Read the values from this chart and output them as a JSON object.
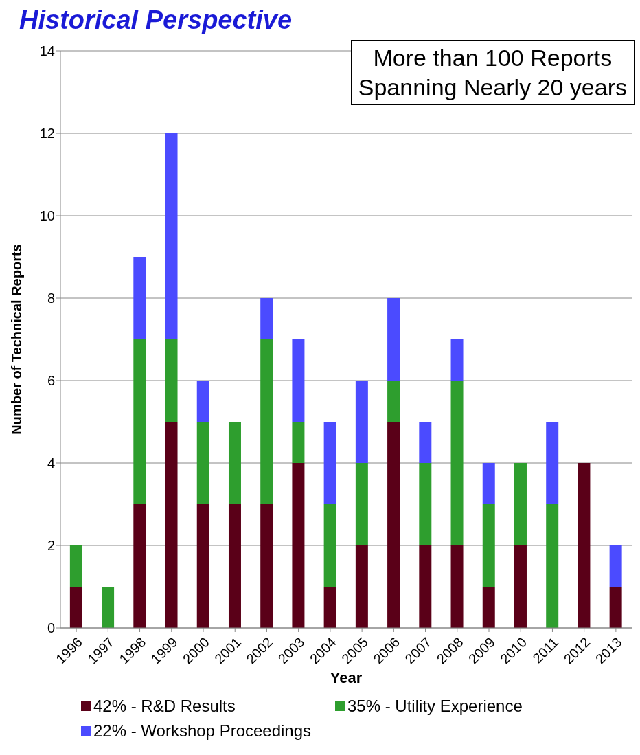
{
  "chart_data": {
    "type": "bar",
    "title": "Historical Perspective",
    "xlabel": "Year",
    "ylabel": "Number of Technical Reports",
    "annotations": [
      "More than 100 Reports\nSpanning Nearly 20 years"
    ],
    "categories": [
      "1996",
      "1997",
      "1998",
      "1999",
      "2000",
      "2001",
      "2002",
      "2003",
      "2004",
      "2005",
      "2006",
      "2007",
      "2008",
      "2009",
      "2010",
      "2011",
      "2012",
      "2013"
    ],
    "series": [
      {
        "name": "42% - R&D Results",
        "color": "#5a0018",
        "values": [
          1,
          0,
          3,
          5,
          3,
          3,
          3,
          4,
          1,
          2,
          5,
          2,
          2,
          1,
          2,
          0,
          4,
          1
        ]
      },
      {
        "name": "35% - Utility Experience",
        "color": "#2e9e2e",
        "values": [
          1,
          1,
          4,
          2,
          2,
          2,
          4,
          1,
          2,
          2,
          1,
          2,
          4,
          2,
          2,
          3,
          0,
          0
        ]
      },
      {
        "name": "22% - Workshop Proceedings",
        "color": "#4b4bff",
        "values": [
          0,
          0,
          2,
          5,
          1,
          0,
          1,
          2,
          2,
          2,
          2,
          1,
          1,
          1,
          0,
          2,
          0,
          1
        ]
      }
    ],
    "stacked": true,
    "ylim": [
      0,
      14
    ],
    "yticks": [
      0,
      2,
      4,
      6,
      8,
      10,
      12,
      14
    ],
    "grid": "y",
    "legend": "bottom"
  }
}
